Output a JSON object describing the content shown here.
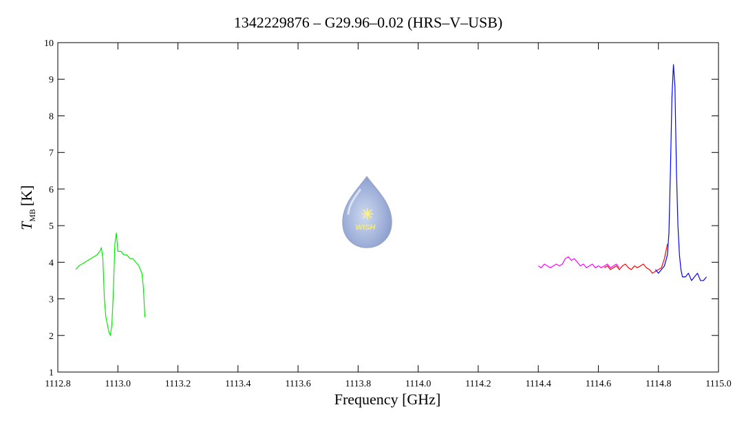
{
  "chart_data": {
    "type": "line",
    "title": "1342229876 – G29.96–0.02 (HRS–V–USB)",
    "xlabel": "Frequency [GHz]",
    "ylabel": {
      "symbol": "T",
      "subscript": "MB",
      "unit": "[K]"
    },
    "logo_text": "WISH",
    "xlim": [
      1112.8,
      1115.0
    ],
    "xticks": [
      1112.8,
      {
        "value": 1113.0,
        "label": "1113.0"
      },
      1113.2,
      1113.4,
      1113.6,
      1113.8,
      {
        "value": 1114.0,
        "label": "1114.0"
      },
      1114.2,
      1114.4,
      1114.6,
      1114.8,
      {
        "value": 1115.0,
        "label": "1115.0"
      }
    ],
    "ylim": [
      1,
      10
    ],
    "yticks": [
      1,
      2,
      3,
      4,
      5,
      6,
      7,
      8,
      9,
      10
    ],
    "series": [
      {
        "color": "#00ee00",
        "x": [
          1112.86,
          1112.87,
          1112.88,
          1112.89,
          1112.9,
          1112.91,
          1112.92,
          1112.93,
          1112.94,
          1112.945,
          1112.95,
          1112.955,
          1112.96,
          1112.965,
          1112.97,
          1112.975,
          1112.98,
          1112.985,
          1112.99,
          1112.995,
          1113.0,
          1113.01,
          1113.02,
          1113.03,
          1113.04,
          1113.05,
          1113.06,
          1113.07,
          1113.08,
          1113.085,
          1113.09
        ],
        "values": [
          3.8,
          3.9,
          3.95,
          4.0,
          4.05,
          4.1,
          4.15,
          4.2,
          4.3,
          4.4,
          4.1,
          3.0,
          2.5,
          2.3,
          2.1,
          2.0,
          2.3,
          3.2,
          4.5,
          4.8,
          4.3,
          4.3,
          4.2,
          4.2,
          4.1,
          4.1,
          4.0,
          3.9,
          3.7,
          3.3,
          2.5
        ]
      },
      {
        "color": "#ff00ff",
        "x": [
          1114.4,
          1114.41,
          1114.42,
          1114.43,
          1114.44,
          1114.45,
          1114.46,
          1114.47,
          1114.48,
          1114.49,
          1114.5,
          1114.51,
          1114.52,
          1114.53,
          1114.54,
          1114.55,
          1114.56,
          1114.57,
          1114.58,
          1114.59,
          1114.6,
          1114.61,
          1114.62,
          1114.63,
          1114.64,
          1114.65,
          1114.66,
          1114.67
        ],
        "values": [
          3.9,
          3.85,
          3.95,
          3.9,
          3.85,
          3.9,
          3.95,
          3.9,
          3.95,
          4.1,
          4.15,
          4.05,
          4.1,
          4.0,
          3.9,
          3.95,
          3.85,
          3.9,
          3.95,
          3.85,
          3.9,
          3.85,
          3.9,
          3.95,
          3.85,
          3.9,
          3.95,
          3.85
        ]
      },
      {
        "color": "#ff0000",
        "x": [
          1114.62,
          1114.63,
          1114.64,
          1114.65,
          1114.66,
          1114.67,
          1114.68,
          1114.69,
          1114.7,
          1114.71,
          1114.72,
          1114.73,
          1114.74,
          1114.75,
          1114.76,
          1114.77,
          1114.78,
          1114.79,
          1114.8,
          1114.81,
          1114.82,
          1114.83
        ],
        "values": [
          3.85,
          3.9,
          3.8,
          3.85,
          3.9,
          3.8,
          3.9,
          3.95,
          3.85,
          3.8,
          3.9,
          3.85,
          3.9,
          3.95,
          3.85,
          3.8,
          3.7,
          3.75,
          3.8,
          3.85,
          4.1,
          4.5
        ]
      },
      {
        "color": "#0000ff",
        "x": [
          1114.79,
          1114.8,
          1114.81,
          1114.82,
          1114.83,
          1114.835,
          1114.84,
          1114.845,
          1114.85,
          1114.855,
          1114.86,
          1114.865,
          1114.87,
          1114.875,
          1114.88,
          1114.89,
          1114.9,
          1114.91,
          1114.92,
          1114.93,
          1114.94,
          1114.95,
          1114.96
        ],
        "values": [
          3.8,
          3.7,
          3.8,
          3.9,
          4.2,
          4.8,
          6.5,
          8.5,
          9.4,
          8.8,
          6.5,
          5.0,
          4.2,
          3.8,
          3.6,
          3.6,
          3.7,
          3.5,
          3.6,
          3.7,
          3.5,
          3.5,
          3.6
        ]
      }
    ]
  }
}
